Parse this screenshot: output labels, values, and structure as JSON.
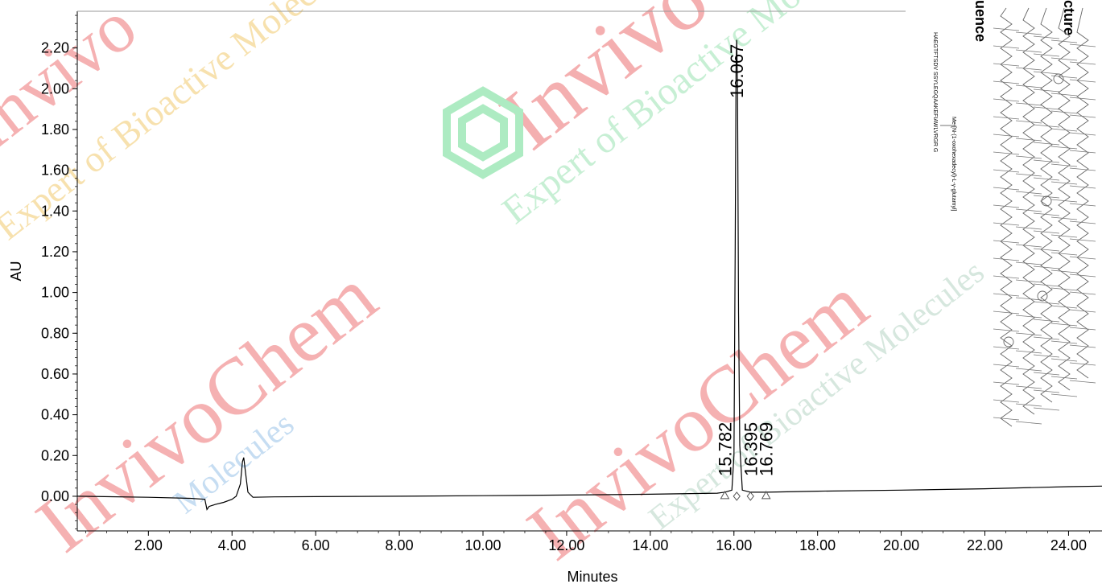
{
  "chart_data": {
    "type": "line",
    "xlabel": "Minutes",
    "ylabel": "AU",
    "xlim": [
      0.3,
      24.8
    ],
    "ylim": [
      -0.17,
      2.38
    ],
    "x_ticks": [
      "2.00",
      "4.00",
      "6.00",
      "8.00",
      "10.00",
      "12.00",
      "14.00",
      "16.00",
      "18.00",
      "20.00",
      "22.00",
      "24.00"
    ],
    "y_ticks": [
      "0.00",
      "0.20",
      "0.40",
      "0.60",
      "0.80",
      "1.00",
      "1.20",
      "1.40",
      "1.60",
      "1.80",
      "2.00",
      "2.20"
    ],
    "series": [
      {
        "x": [
          0.3,
          2.0,
          3.0,
          3.35,
          3.4,
          3.45,
          3.6,
          3.8,
          4.0,
          4.1,
          4.2,
          4.25,
          4.28,
          4.32,
          4.38,
          4.5,
          5.0,
          6.0,
          8.0,
          10.0,
          12.0,
          14.0,
          15.6,
          15.78,
          15.95,
          16.0,
          16.03,
          16.05,
          16.067,
          16.085,
          16.11,
          16.14,
          16.2,
          16.4,
          16.77,
          18.0,
          20.0,
          22.0,
          24.0,
          24.8
        ],
        "y": [
          0.0,
          -0.005,
          -0.01,
          -0.015,
          -0.065,
          -0.05,
          -0.04,
          -0.03,
          -0.015,
          0.0,
          0.06,
          0.17,
          0.19,
          0.12,
          0.02,
          -0.005,
          -0.003,
          -0.002,
          0.0,
          0.003,
          0.006,
          0.01,
          0.015,
          0.02,
          0.03,
          0.2,
          1.2,
          2.1,
          2.24,
          2.0,
          0.9,
          0.25,
          0.03,
          0.02,
          0.02,
          0.025,
          0.03,
          0.037,
          0.047,
          0.05
        ]
      }
    ],
    "peaks": [
      {
        "label": "15.782",
        "x": 15.782,
        "marker": "triangle"
      },
      {
        "label": "16.067",
        "x": 16.067,
        "marker": "diamond"
      },
      {
        "label": "16.395",
        "x": 16.395,
        "marker": "diamond"
      },
      {
        "label": "16.769",
        "x": 16.769,
        "marker": "triangle"
      }
    ]
  },
  "side_panel": {
    "sequence_title": "uence",
    "structure_title": "cture",
    "sequence_line1": "Me-[N-(1-oxohexadecyl)-L-γ-glutamyl]",
    "sequence_line2": "HAEGTFTSDV SSYLEGQAAKEFIAWLVRGR G"
  },
  "watermark": {
    "brand_a": "Invivo",
    "brand_b": "InvivoChem",
    "tagline": "Expert of Bioactive Molecules",
    "tagline_short": "Molecules",
    "color_red": "#e8282a",
    "color_green": "#39d96e",
    "color_yellow": "#f2c94c"
  }
}
